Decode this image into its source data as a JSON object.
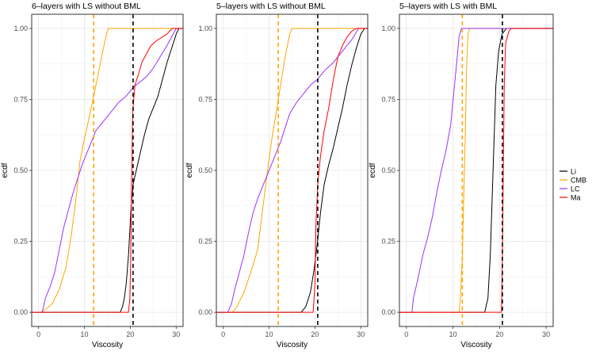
{
  "chart_data": [
    {
      "type": "line",
      "subtype": "ecdf",
      "title": "6–layers with LS without BML",
      "xlabel": "Viscosity",
      "ylabel": "ecdf",
      "xlim": [
        -1.5,
        31.5
      ],
      "ylim": [
        -0.05,
        1.05
      ],
      "x_ticks": [
        0,
        10,
        20,
        30
      ],
      "y_ticks": [
        "0.00",
        "0.25",
        "0.50",
        "0.75",
        "1.00"
      ],
      "vlines": [
        {
          "x": 12,
          "color": "#FFA500",
          "style": "dashed"
        },
        {
          "x": 20.6,
          "color": "#000000",
          "style": "dashed"
        }
      ],
      "series": [
        {
          "name": "Li",
          "color": "#000000",
          "points": [
            [
              -1.5,
              0
            ],
            [
              17.8,
              0
            ],
            [
              18.3,
              0.02
            ],
            [
              18.7,
              0.05
            ],
            [
              19.1,
              0.1
            ],
            [
              19.6,
              0.2
            ],
            [
              20.1,
              0.35
            ],
            [
              20.6,
              0.45
            ],
            [
              21.3,
              0.5
            ],
            [
              22,
              0.55
            ],
            [
              23,
              0.62
            ],
            [
              24,
              0.68
            ],
            [
              25,
              0.72
            ],
            [
              26,
              0.76
            ],
            [
              27,
              0.82
            ],
            [
              28,
              0.88
            ],
            [
              29,
              0.93
            ],
            [
              30,
              0.98
            ],
            [
              30.6,
              1
            ],
            [
              31.5,
              1
            ]
          ]
        },
        {
          "name": "CMB",
          "color": "#FFA500",
          "points": [
            [
              -1.5,
              0
            ],
            [
              0.5,
              0
            ],
            [
              1.5,
              0.01
            ],
            [
              3,
              0.03
            ],
            [
              4.5,
              0.08
            ],
            [
              6,
              0.16
            ],
            [
              7.2,
              0.28
            ],
            [
              8.3,
              0.42
            ],
            [
              9,
              0.53
            ],
            [
              9.6,
              0.58
            ],
            [
              10.4,
              0.64
            ],
            [
              11.2,
              0.7
            ],
            [
              12,
              0.76
            ],
            [
              13,
              0.84
            ],
            [
              14,
              0.92
            ],
            [
              14.8,
              0.98
            ],
            [
              15.2,
              1
            ],
            [
              31.5,
              1
            ]
          ]
        },
        {
          "name": "LC",
          "color": "#9B30FF",
          "points": [
            [
              -1.5,
              0
            ],
            [
              0.8,
              0
            ],
            [
              1.5,
              0.05
            ],
            [
              2.5,
              0.09
            ],
            [
              3.5,
              0.14
            ],
            [
              4.5,
              0.22
            ],
            [
              5.5,
              0.3
            ],
            [
              6.5,
              0.36
            ],
            [
              7.5,
              0.42
            ],
            [
              8.5,
              0.47
            ],
            [
              9.5,
              0.52
            ],
            [
              10.5,
              0.56
            ],
            [
              11.5,
              0.6
            ],
            [
              12.5,
              0.64
            ],
            [
              13.5,
              0.66
            ],
            [
              14.5,
              0.68
            ],
            [
              16,
              0.71
            ],
            [
              17.5,
              0.74
            ],
            [
              19,
              0.76
            ],
            [
              20.5,
              0.79
            ],
            [
              22,
              0.81
            ],
            [
              23.5,
              0.83
            ],
            [
              25,
              0.86
            ],
            [
              26.5,
              0.9
            ],
            [
              28,
              0.94
            ],
            [
              29,
              0.97
            ],
            [
              30,
              1
            ],
            [
              31.5,
              1
            ]
          ]
        },
        {
          "name": "Ma",
          "color": "#FF0000",
          "points": [
            [
              -1.5,
              0
            ],
            [
              19.6,
              0
            ],
            [
              19.9,
              0.05
            ],
            [
              20.1,
              0.2
            ],
            [
              20.3,
              0.45
            ],
            [
              20.5,
              0.7
            ],
            [
              21,
              0.8
            ],
            [
              21.8,
              0.84
            ],
            [
              22.5,
              0.88
            ],
            [
              23.5,
              0.91
            ],
            [
              24.5,
              0.94
            ],
            [
              26,
              0.96
            ],
            [
              27,
              0.97
            ],
            [
              28,
              0.98
            ],
            [
              28.5,
              0.99
            ],
            [
              29.2,
              1
            ],
            [
              31.5,
              1
            ]
          ]
        }
      ]
    },
    {
      "type": "line",
      "subtype": "ecdf",
      "title": "5–layers with LS without BML",
      "xlabel": "Viscosity",
      "ylabel": "ecdf",
      "xlim": [
        -1.5,
        31.5
      ],
      "ylim": [
        -0.05,
        1.05
      ],
      "x_ticks": [
        0,
        10,
        20,
        30
      ],
      "y_ticks": [
        "0.00",
        "0.25",
        "0.50",
        "0.75",
        "1.00"
      ],
      "vlines": [
        {
          "x": 12,
          "color": "#FFA500",
          "style": "dashed"
        },
        {
          "x": 20.6,
          "color": "#000000",
          "style": "dashed"
        }
      ],
      "series": [
        {
          "name": "Li",
          "color": "#000000",
          "points": [
            [
              -1.5,
              0
            ],
            [
              17,
              0
            ],
            [
              18,
              0.02
            ],
            [
              19,
              0.07
            ],
            [
              19.8,
              0.15
            ],
            [
              20.5,
              0.24
            ],
            [
              21.2,
              0.35
            ],
            [
              22,
              0.45
            ],
            [
              23,
              0.52
            ],
            [
              24,
              0.58
            ],
            [
              25,
              0.65
            ],
            [
              26,
              0.72
            ],
            [
              27,
              0.8
            ],
            [
              28,
              0.87
            ],
            [
              29,
              0.93
            ],
            [
              30,
              0.98
            ],
            [
              30.8,
              1
            ],
            [
              31.5,
              1
            ]
          ]
        },
        {
          "name": "CMB",
          "color": "#FFA500",
          "points": [
            [
              -1.5,
              0
            ],
            [
              2,
              0
            ],
            [
              3,
              0.02
            ],
            [
              4.5,
              0.07
            ],
            [
              6,
              0.14
            ],
            [
              7.5,
              0.22
            ],
            [
              8.5,
              0.35
            ],
            [
              9.5,
              0.48
            ],
            [
              10.5,
              0.6
            ],
            [
              11.5,
              0.7
            ],
            [
              12.5,
              0.8
            ],
            [
              13.5,
              0.9
            ],
            [
              14.5,
              0.98
            ],
            [
              15,
              1
            ],
            [
              31.5,
              1
            ]
          ]
        },
        {
          "name": "LC",
          "color": "#9B30FF",
          "points": [
            [
              -1.5,
              0
            ],
            [
              1,
              0
            ],
            [
              1.8,
              0.03
            ],
            [
              2.5,
              0.08
            ],
            [
              3.5,
              0.14
            ],
            [
              4.5,
              0.2
            ],
            [
              5.5,
              0.28
            ],
            [
              6.5,
              0.35
            ],
            [
              7.5,
              0.4
            ],
            [
              8.5,
              0.44
            ],
            [
              9.5,
              0.48
            ],
            [
              10.5,
              0.52
            ],
            [
              11.5,
              0.56
            ],
            [
              12.5,
              0.6
            ],
            [
              13.5,
              0.65
            ],
            [
              14.5,
              0.7
            ],
            [
              16,
              0.74
            ],
            [
              17.5,
              0.77
            ],
            [
              19,
              0.8
            ],
            [
              20.5,
              0.82
            ],
            [
              22,
              0.85
            ],
            [
              24,
              0.88
            ],
            [
              26,
              0.92
            ],
            [
              28,
              0.96
            ],
            [
              29.5,
              1
            ],
            [
              31.5,
              1
            ]
          ]
        },
        {
          "name": "Ma",
          "color": "#FF0000",
          "points": [
            [
              -1.5,
              0
            ],
            [
              19.6,
              0
            ],
            [
              20,
              0.1
            ],
            [
              20.2,
              0.3
            ],
            [
              20.6,
              0.45
            ],
            [
              21.2,
              0.55
            ],
            [
              22,
              0.64
            ],
            [
              23,
              0.72
            ],
            [
              24,
              0.82
            ],
            [
              25,
              0.9
            ],
            [
              26,
              0.94
            ],
            [
              27,
              0.97
            ],
            [
              28,
              0.99
            ],
            [
              29,
              1
            ],
            [
              31.5,
              1
            ]
          ]
        }
      ]
    },
    {
      "type": "line",
      "subtype": "ecdf",
      "title": "5–layers with LS with BML",
      "xlabel": "Viscosity",
      "ylabel": "ecdf",
      "xlim": [
        -1.5,
        31.5
      ],
      "ylim": [
        -0.05,
        1.05
      ],
      "x_ticks": [
        0,
        10,
        20,
        30
      ],
      "y_ticks": [
        "0.00",
        "0.25",
        "0.50",
        "0.75",
        "1.00"
      ],
      "vlines": [
        {
          "x": 12,
          "color": "#FFA500",
          "style": "dashed"
        },
        {
          "x": 20.6,
          "color": "#000000",
          "style": "dashed"
        }
      ],
      "series": [
        {
          "name": "Li",
          "color": "#000000",
          "points": [
            [
              -1.5,
              0
            ],
            [
              16.8,
              0
            ],
            [
              17.5,
              0.05
            ],
            [
              18,
              0.2
            ],
            [
              18.4,
              0.4
            ],
            [
              18.8,
              0.6
            ],
            [
              19.2,
              0.8
            ],
            [
              19.8,
              0.92
            ],
            [
              20.5,
              0.98
            ],
            [
              21.5,
              1
            ],
            [
              31.5,
              1
            ]
          ]
        },
        {
          "name": "CMB",
          "color": "#FFA500",
          "points": [
            [
              -1.5,
              0
            ],
            [
              11.3,
              0
            ],
            [
              11.6,
              0.05
            ],
            [
              12,
              0.2
            ],
            [
              12.3,
              0.4
            ],
            [
              12.6,
              0.6
            ],
            [
              12.9,
              0.85
            ],
            [
              13.2,
              0.98
            ],
            [
              13.6,
              1
            ],
            [
              31.5,
              1
            ]
          ]
        },
        {
          "name": "LC",
          "color": "#9B30FF",
          "points": [
            [
              -1.5,
              0
            ],
            [
              1.2,
              0
            ],
            [
              1.5,
              0.05
            ],
            [
              2.5,
              0.12
            ],
            [
              3.5,
              0.2
            ],
            [
              4.5,
              0.26
            ],
            [
              5.5,
              0.33
            ],
            [
              6.5,
              0.42
            ],
            [
              7.5,
              0.5
            ],
            [
              8.5,
              0.57
            ],
            [
              9.5,
              0.66
            ],
            [
              10.2,
              0.78
            ],
            [
              10.8,
              0.88
            ],
            [
              11.3,
              0.97
            ],
            [
              11.8,
              1
            ],
            [
              31.5,
              1
            ]
          ]
        },
        {
          "name": "Ma",
          "color": "#FF0000",
          "points": [
            [
              -1.5,
              0
            ],
            [
              20.4,
              0
            ],
            [
              20.6,
              0.2
            ],
            [
              20.8,
              0.5
            ],
            [
              21,
              0.8
            ],
            [
              21.3,
              0.95
            ],
            [
              22,
              0.99
            ],
            [
              22.5,
              1
            ],
            [
              31.5,
              1
            ]
          ]
        }
      ]
    }
  ],
  "legend": {
    "items": [
      {
        "label": "Li",
        "color": "#000000"
      },
      {
        "label": "CMB",
        "color": "#FFA500"
      },
      {
        "label": "LC",
        "color": "#9B30FF"
      },
      {
        "label": "Ma",
        "color": "#FF0000"
      }
    ]
  }
}
